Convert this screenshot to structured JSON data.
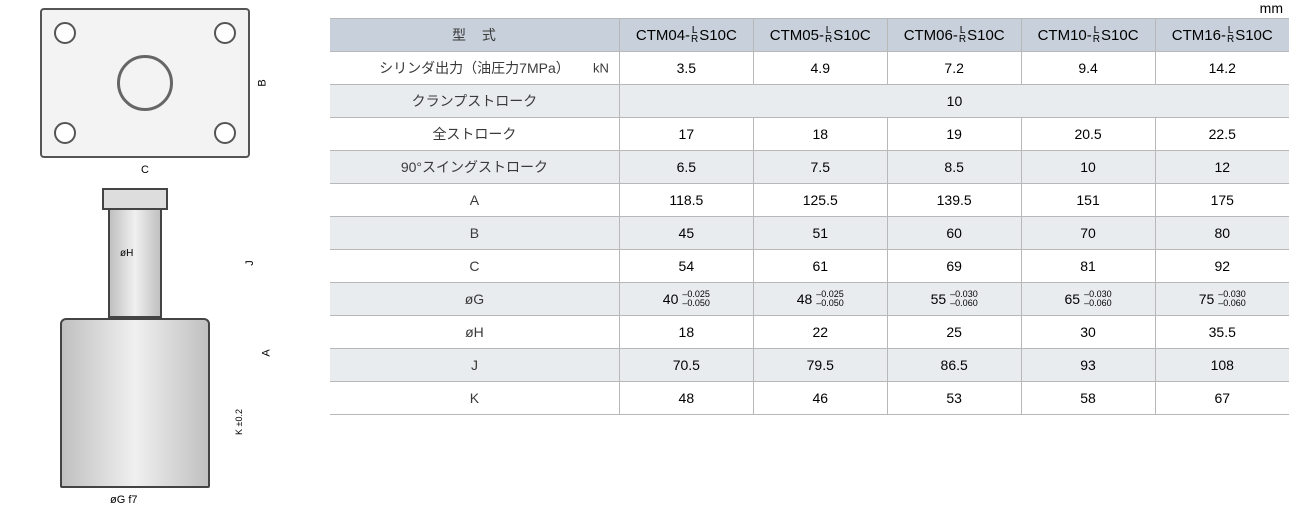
{
  "unit_label": "mm",
  "diagram": {
    "top_view": {
      "label_B": "B",
      "label_C": "C"
    },
    "side_view": {
      "label_A": "A",
      "label_J": "J",
      "label_K": "K ±0.2",
      "label_phiH": "øH",
      "label_phiG": "øG f7"
    }
  },
  "table": {
    "header_label": "型　式",
    "models": [
      {
        "prefix": "CTM04-",
        "suffix": "S10C"
      },
      {
        "prefix": "CTM05-",
        "suffix": "S10C"
      },
      {
        "prefix": "CTM06-",
        "suffix": "S10C"
      },
      {
        "prefix": "CTM10-",
        "suffix": "S10C"
      },
      {
        "prefix": "CTM16-",
        "suffix": "S10C"
      }
    ],
    "lr": {
      "top": "L",
      "bottom": "R"
    },
    "rows": [
      {
        "label": "シリンダ出力（油圧力7MPa）",
        "unit": "kN",
        "values": [
          "3.5",
          "4.9",
          "7.2",
          "9.4",
          "14.2"
        ]
      },
      {
        "label": "クランプストローク",
        "span_value": "10"
      },
      {
        "label": "全ストローク",
        "values": [
          "17",
          "18",
          "19",
          "20.5",
          "22.5"
        ]
      },
      {
        "label": "90°スイングストローク",
        "values": [
          "6.5",
          "7.5",
          "8.5",
          "10",
          "12"
        ]
      },
      {
        "label": "A",
        "values": [
          "118.5",
          "125.5",
          "139.5",
          "151",
          "175"
        ]
      },
      {
        "label": "B",
        "values": [
          "45",
          "51",
          "60",
          "70",
          "80"
        ]
      },
      {
        "label": "C",
        "values": [
          "54",
          "61",
          "69",
          "81",
          "92"
        ]
      },
      {
        "label": "øG",
        "tolerance_values": [
          {
            "nom": "40",
            "upper": "–0.025",
            "lower": "–0.050"
          },
          {
            "nom": "48",
            "upper": "–0.025",
            "lower": "–0.050"
          },
          {
            "nom": "55",
            "upper": "–0.030",
            "lower": "–0.060"
          },
          {
            "nom": "65",
            "upper": "–0.030",
            "lower": "–0.060"
          },
          {
            "nom": "75",
            "upper": "–0.030",
            "lower": "–0.060"
          }
        ]
      },
      {
        "label": "øH",
        "values": [
          "18",
          "22",
          "25",
          "30",
          "35.5"
        ]
      },
      {
        "label": "J",
        "values": [
          "70.5",
          "79.5",
          "86.5",
          "93",
          "108"
        ]
      },
      {
        "label": "K",
        "values": [
          "48",
          "46",
          "53",
          "58",
          "67"
        ]
      }
    ]
  },
  "colors": {
    "header_bg": "#c7d0db",
    "row_even_bg": "#e9ecef",
    "row_odd_bg": "#ffffff",
    "border": "#b8b8b8",
    "text": "#000000"
  }
}
